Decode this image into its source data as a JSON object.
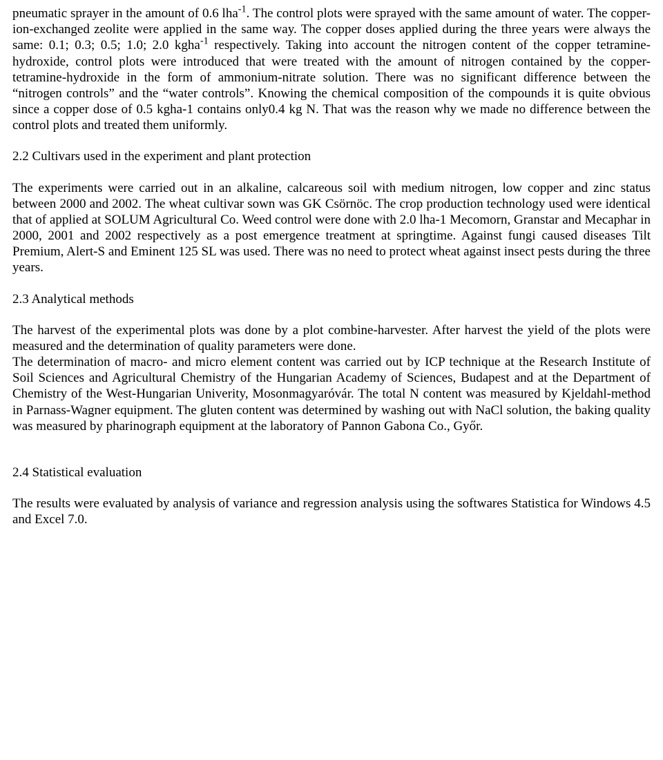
{
  "paragraphs": {
    "p1_a": "pneumatic sprayer in the amount of 0.6 lha",
    "p1_sup1": "-1",
    "p1_b": ". The control plots were sprayed with the same amount of water. The copper-ion-exchanged zeolite were applied in the same way. The copper doses applied during the three years were always the same: 0.1; 0.3; 0.5; 1.0; 2.0 kgha",
    "p1_sup2": "-1",
    "p1_c": " respectively. Taking into account the nitrogen content of the copper tetramine-hydroxide, control plots were introduced that were treated with the amount of nitrogen contained by the copper-tetramine-hydroxide in the form of ammonium-nitrate solution. There was no significant difference between the “nitrogen controls” and the “water controls”. Knowing the chemical composition of the compounds it is quite obvious since a copper dose of 0.5 kgha-1 contains only0.4 kg N. That was the reason why we made no difference between the control plots and treated them uniformly.",
    "h22": "2.2 Cultivars used in the experiment and plant protection",
    "p2": "The experiments were carried out in an alkaline, calcareous soil with medium nitrogen, low copper and zinc status between 2000 and 2002. The wheat cultivar sown was GK Csörnöc. The crop production technology used were identical that of applied at SOLUM Agricultural Co. Weed control were done with 2.0 lha-1 Mecomorn, Granstar and Mecaphar in 2000, 2001 and 2002 respectively as a post emergence treatment at springtime. Against fungi caused diseases Tilt Premium, Alert-S and Eminent 125 SL was used. There was no need to protect wheat against insect pests during the three years.",
    "h23": "2.3 Analytical methods",
    "p3a": "The harvest of the experimental plots was done by a plot combine-harvester. After harvest the yield of the plots were measured and the determination of quality parameters were done.",
    "p3b": "The determination of macro- and micro element content was carried out by ICP technique at the Research Institute of Soil Sciences and Agricultural Chemistry of the Hungarian Academy of Sciences, Budapest and at the Department of Chemistry of the West-Hungarian Univerity, Mosonmagyaróvár. The total N content was measured by Kjeldahl-method in Parnass-Wagner equipment. The gluten content was determined by washing out with NaCl solution, the baking quality was measured by pharinograph equipment at the laboratory of Pannon Gabona Co., Győr.",
    "h24": "2.4 Statistical evaluation",
    "p4": "The results were evaluated by analysis of variance and regression analysis using the softwares Statistica for Windows 4.5 and Excel 7.0."
  },
  "style": {
    "font_family": "Times New Roman",
    "font_size_pt": 14,
    "text_color": "#000000",
    "background_color": "#ffffff",
    "text_align": "justify"
  }
}
